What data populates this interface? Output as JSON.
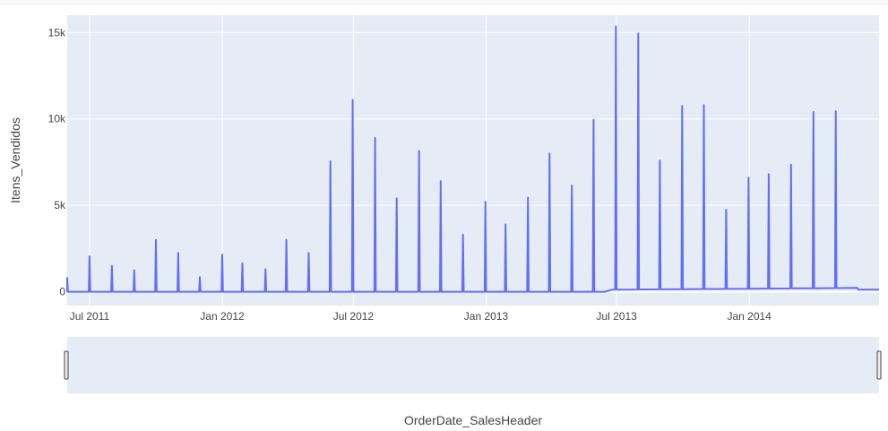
{
  "chart_data": {
    "type": "line",
    "xlabel": "OrderDate_SalesHeader",
    "ylabel": "Itens_Vendidos",
    "x_range": [
      "2011-05-31",
      "2014-06-30"
    ],
    "ylim": [
      -800,
      16000
    ],
    "y_ticks": [
      0,
      5000,
      10000,
      15000
    ],
    "y_tick_labels": [
      "0",
      "5k",
      "10k",
      "15k"
    ],
    "x_ticks": [
      "2011-07-01",
      "2012-01-01",
      "2012-07-01",
      "2013-01-01",
      "2013-07-01",
      "2014-01-01"
    ],
    "x_tick_labels": [
      "Jul 2011",
      "Jan 2012",
      "Jul 2012",
      "Jan 2013",
      "Jul 2013",
      "Jan 2014"
    ],
    "grid": true,
    "range_slider": true,
    "colors": {
      "line": "#636efa",
      "plot_bg": "#e5ecf6",
      "grid": "#ffffff"
    },
    "series": [
      {
        "baseline": [
          [
            "2011-05-31",
            0
          ],
          [
            "2013-06-15",
            0
          ],
          [
            "2013-06-25",
            120
          ],
          [
            "2014-05-31",
            220
          ],
          [
            "2014-06-01",
            120
          ],
          [
            "2014-06-30",
            120
          ]
        ],
        "spikes": [
          [
            "2011-05-31",
            800
          ],
          [
            "2011-07-01",
            2050
          ],
          [
            "2011-08-01",
            1500
          ],
          [
            "2011-09-01",
            1250
          ],
          [
            "2011-10-01",
            3000
          ],
          [
            "2011-11-01",
            2250
          ],
          [
            "2011-12-01",
            850
          ],
          [
            "2012-01-01",
            2150
          ],
          [
            "2012-01-29",
            1650
          ],
          [
            "2012-03-01",
            1300
          ],
          [
            "2012-03-30",
            3000
          ],
          [
            "2012-04-30",
            2250
          ],
          [
            "2012-05-30",
            7550
          ],
          [
            "2012-06-30",
            11100
          ],
          [
            "2012-07-31",
            8900
          ],
          [
            "2012-08-30",
            5400
          ],
          [
            "2012-09-30",
            8150
          ],
          [
            "2012-10-30",
            6400
          ],
          [
            "2012-11-30",
            3300
          ],
          [
            "2012-12-31",
            5200
          ],
          [
            "2013-01-28",
            3900
          ],
          [
            "2013-02-28",
            5450
          ],
          [
            "2013-03-30",
            8000
          ],
          [
            "2013-04-30",
            6150
          ],
          [
            "2013-05-30",
            9950
          ],
          [
            "2013-06-30",
            15350
          ],
          [
            "2013-07-31",
            14950
          ],
          [
            "2013-08-30",
            7600
          ],
          [
            "2013-09-30",
            10750
          ],
          [
            "2013-10-30",
            10800
          ],
          [
            "2013-11-30",
            4750
          ],
          [
            "2013-12-31",
            6600
          ],
          [
            "2014-01-28",
            6800
          ],
          [
            "2014-02-28",
            7350
          ],
          [
            "2014-03-31",
            10400
          ],
          [
            "2014-05-01",
            10450
          ]
        ]
      }
    ]
  }
}
